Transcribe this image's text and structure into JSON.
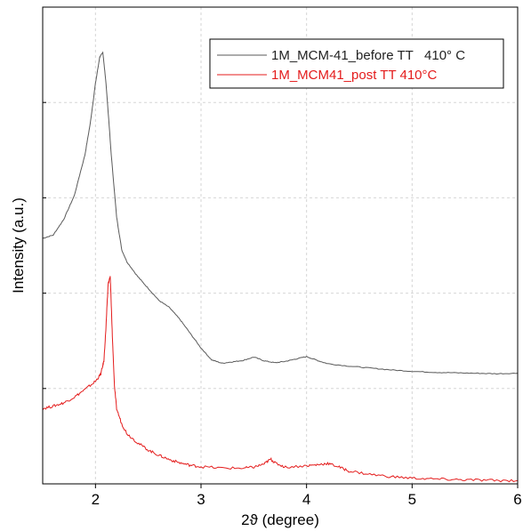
{
  "chart_data": {
    "type": "line",
    "title": "",
    "xlabel": "2ϑ (degree)",
    "ylabel": "Intensity (a.u.)",
    "xlim": [
      1.5,
      6
    ],
    "ylim": [
      0,
      100
    ],
    "x_ticks": [
      2,
      3,
      4,
      5,
      6
    ],
    "x_tick_labels": [
      "2",
      "3",
      "4",
      "5",
      "6"
    ],
    "y_tick_labels_shown": false,
    "grid": true,
    "legend_position": "top-right",
    "series": [
      {
        "name": "1M_MCM-41_before TT   410° C",
        "color": "#5a5a5a",
        "x": [
          1.5,
          1.6,
          1.7,
          1.8,
          1.9,
          1.95,
          2.0,
          2.04,
          2.07,
          2.1,
          2.15,
          2.2,
          2.25,
          2.3,
          2.4,
          2.5,
          2.6,
          2.7,
          2.8,
          2.9,
          3.0,
          3.1,
          3.2,
          3.3,
          3.4,
          3.5,
          3.6,
          3.7,
          3.8,
          3.9,
          4.0,
          4.1,
          4.2,
          4.4,
          4.6,
          4.8,
          5.0,
          5.2,
          5.4,
          5.6,
          5.8,
          6.0
        ],
        "y": [
          51.5,
          52.2,
          55.5,
          60.5,
          69.0,
          75.5,
          84.0,
          89.5,
          90.5,
          84.0,
          69.0,
          56.0,
          49.0,
          46.5,
          43.5,
          41.0,
          38.5,
          37.0,
          34.5,
          31.5,
          28.5,
          26.0,
          25.3,
          25.6,
          25.9,
          26.6,
          25.8,
          25.4,
          25.7,
          26.2,
          26.7,
          25.9,
          25.2,
          24.7,
          24.3,
          23.9,
          23.6,
          23.4,
          23.3,
          23.2,
          23.1,
          23.2
        ]
      },
      {
        "name": "1M_MCM41_post TT 410°C",
        "color": "#e41c1c",
        "x": [
          1.5,
          1.6,
          1.7,
          1.8,
          1.9,
          2.0,
          2.05,
          2.08,
          2.1,
          2.12,
          2.14,
          2.16,
          2.18,
          2.2,
          2.25,
          2.3,
          2.4,
          2.5,
          2.6,
          2.7,
          2.8,
          2.9,
          3.0,
          3.2,
          3.4,
          3.5,
          3.6,
          3.66,
          3.7,
          3.8,
          4.0,
          4.1,
          4.2,
          4.3,
          4.4,
          4.6,
          4.8,
          5.0,
          5.2,
          5.4,
          5.6,
          5.8,
          6.0
        ],
        "y": [
          15.8,
          16.3,
          17.0,
          18.2,
          19.8,
          21.5,
          23.0,
          25.8,
          33.0,
          42.0,
          43.5,
          31.0,
          20.5,
          15.8,
          12.5,
          10.5,
          8.6,
          7.1,
          6.0,
          5.1,
          4.4,
          3.9,
          3.6,
          3.3,
          3.3,
          3.5,
          4.2,
          5.2,
          4.4,
          3.5,
          3.8,
          4.0,
          4.3,
          3.6,
          2.7,
          2.0,
          1.5,
          1.2,
          1.0,
          0.9,
          0.8,
          0.7,
          0.7
        ]
      }
    ]
  }
}
